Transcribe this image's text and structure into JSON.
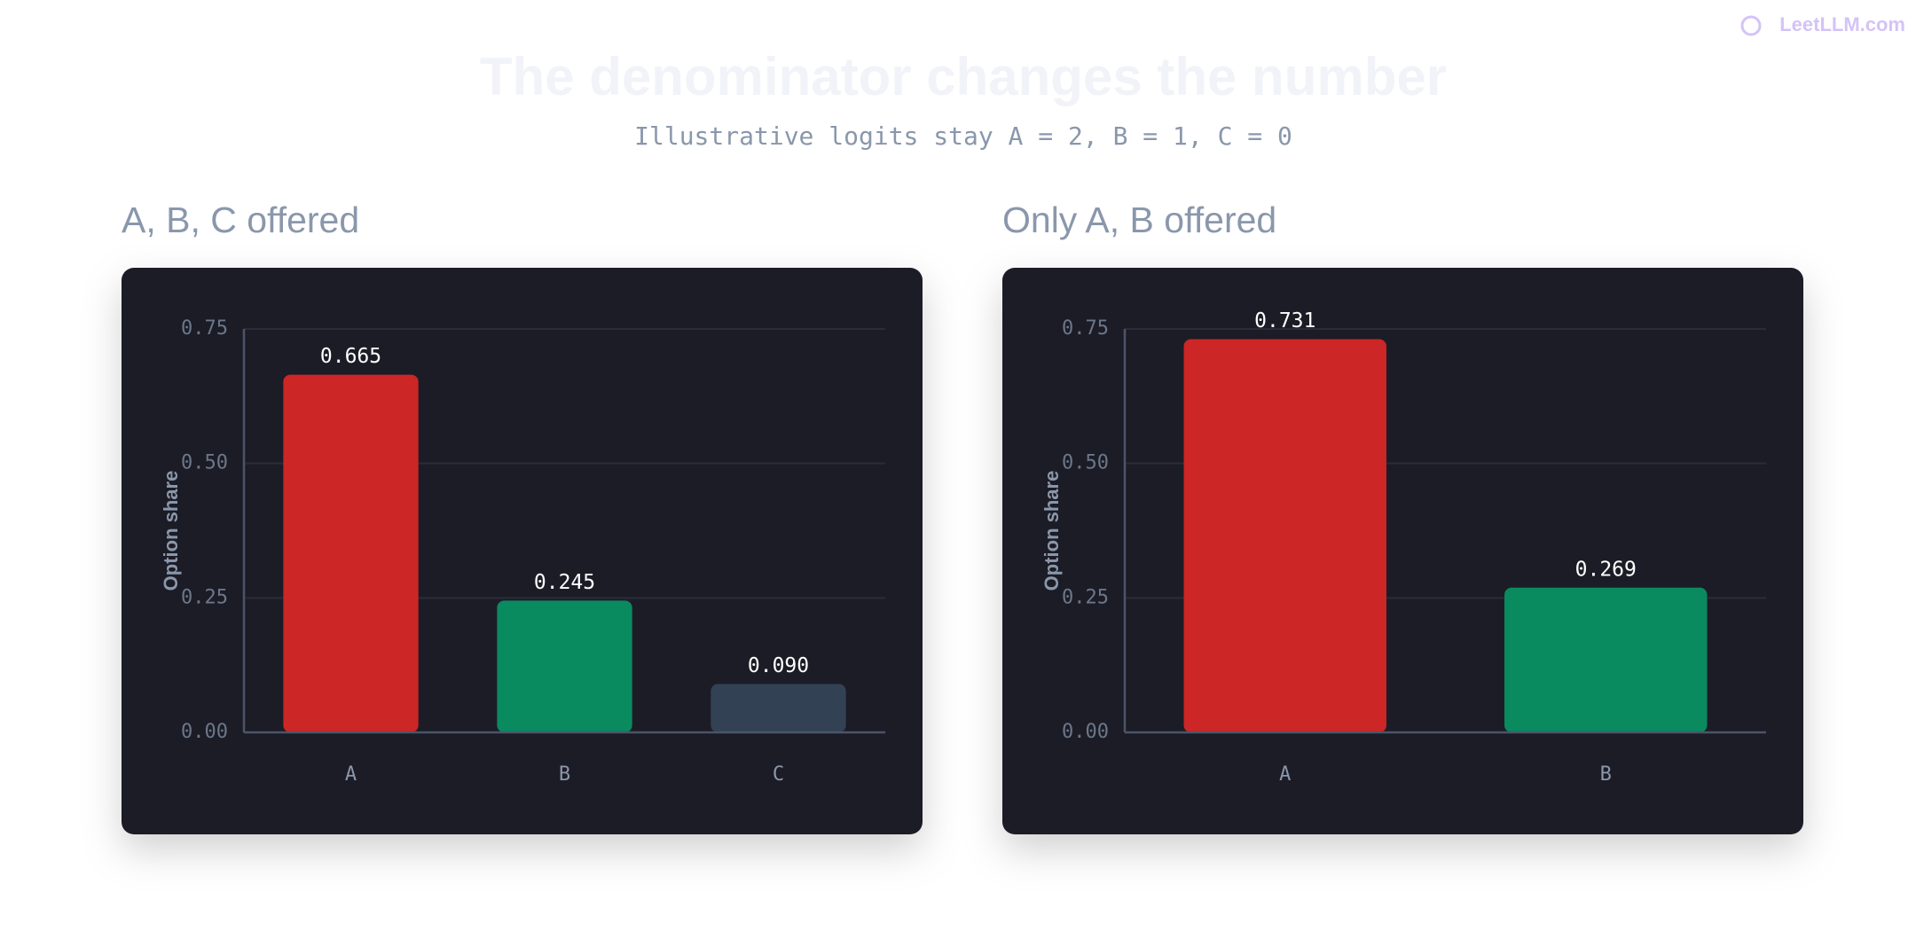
{
  "header": {
    "title": "The denominator changes the number",
    "subtitle": "Illustrative logits stay A = 2, B = 1, C = 0",
    "logo": "LeetLLM.com"
  },
  "chart_data": [
    {
      "type": "bar",
      "title": "A, B, C offered",
      "y_label": "Option share",
      "categories": [
        "A",
        "B",
        "C"
      ],
      "values": [
        0.665,
        0.245,
        0.09
      ],
      "value_labels": [
        "0.665",
        "0.245",
        "0.090"
      ],
      "colors": [
        "#cc2626",
        "#0a8a5f",
        "#334155"
      ],
      "ylim": [
        0,
        0.75
      ],
      "yticks": [
        {
          "value": 0,
          "label": "0.00"
        },
        {
          "value": 0.25,
          "label": "0.25"
        },
        {
          "value": 0.5,
          "label": "0.50"
        },
        {
          "value": 0.75,
          "label": "0.75"
        }
      ],
      "grid": true
    },
    {
      "type": "bar",
      "title": "Only A, B offered",
      "y_label": "Option share",
      "categories": [
        "A",
        "B"
      ],
      "values": [
        0.731,
        0.269
      ],
      "value_labels": [
        "0.731",
        "0.269"
      ],
      "colors": [
        "#cc2626",
        "#0a8a5f"
      ],
      "ylim": [
        0,
        0.75
      ],
      "yticks": [
        {
          "value": 0,
          "label": "0.00"
        },
        {
          "value": 0.25,
          "label": "0.25"
        },
        {
          "value": 0.5,
          "label": "0.50"
        },
        {
          "value": 0.75,
          "label": "0.75"
        }
      ],
      "grid": true
    }
  ]
}
